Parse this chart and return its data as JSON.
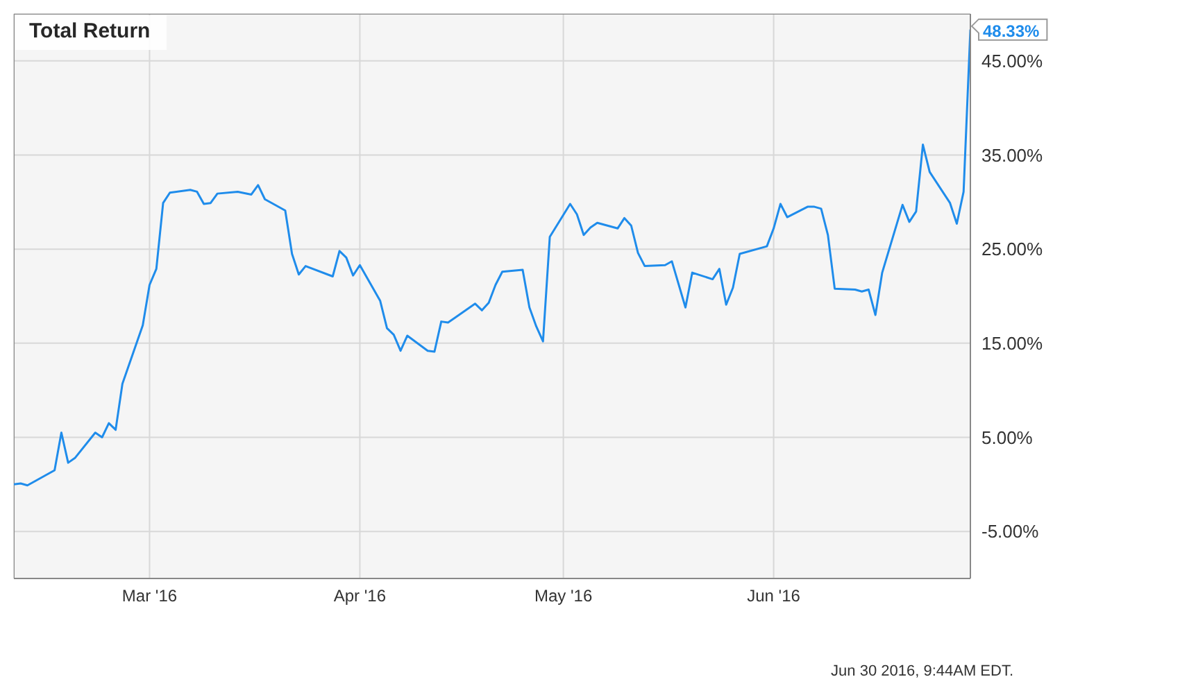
{
  "chart_data": {
    "type": "line",
    "title": "Total Return",
    "annotations": [
      "Jun 30 2016, 9:44AM EDT."
    ],
    "x": [
      "2016-02-10",
      "2016-02-11",
      "2016-02-12",
      "2016-02-16",
      "2016-02-17",
      "2016-02-18",
      "2016-02-19",
      "2016-02-22",
      "2016-02-23",
      "2016-02-24",
      "2016-02-25",
      "2016-02-26",
      "2016-02-29",
      "2016-03-01",
      "2016-03-02",
      "2016-03-03",
      "2016-03-04",
      "2016-03-07",
      "2016-03-08",
      "2016-03-09",
      "2016-03-10",
      "2016-03-11",
      "2016-03-14",
      "2016-03-16",
      "2016-03-17",
      "2016-03-18",
      "2016-03-21",
      "2016-03-22",
      "2016-03-23",
      "2016-03-24",
      "2016-03-28",
      "2016-03-29",
      "2016-03-30",
      "2016-03-31",
      "2016-04-01",
      "2016-04-04",
      "2016-04-05",
      "2016-04-06",
      "2016-04-07",
      "2016-04-08",
      "2016-04-11",
      "2016-04-12",
      "2016-04-13",
      "2016-04-14",
      "2016-04-15",
      "2016-04-18",
      "2016-04-19",
      "2016-04-20",
      "2016-04-21",
      "2016-04-22",
      "2016-04-25",
      "2016-04-26",
      "2016-04-27",
      "2016-04-28",
      "2016-04-29",
      "2016-05-02",
      "2016-05-03",
      "2016-05-04",
      "2016-05-05",
      "2016-05-06",
      "2016-05-09",
      "2016-05-10",
      "2016-05-11",
      "2016-05-12",
      "2016-05-13",
      "2016-05-16",
      "2016-05-17",
      "2016-05-19",
      "2016-05-20",
      "2016-05-23",
      "2016-05-24",
      "2016-05-25",
      "2016-05-26",
      "2016-05-27",
      "2016-05-31",
      "2016-06-01",
      "2016-06-02",
      "2016-06-03",
      "2016-06-06",
      "2016-06-07",
      "2016-06-08",
      "2016-06-09",
      "2016-06-10",
      "2016-06-13",
      "2016-06-14",
      "2016-06-15",
      "2016-06-16",
      "2016-06-17",
      "2016-06-20",
      "2016-06-21",
      "2016-06-22",
      "2016-06-23",
      "2016-06-24",
      "2016-06-27",
      "2016-06-28",
      "2016-06-29",
      "2016-06-30"
    ],
    "series": [
      {
        "color": "#1f8ceb",
        "values": [
          0,
          0.1,
          -0.1,
          1.5,
          5.5,
          2.3,
          2.8,
          5.5,
          5.0,
          6.5,
          5.8,
          10.7,
          16.9,
          21.2,
          22.9,
          29.9,
          31.0,
          31.3,
          31.1,
          29.8,
          29.9,
          30.9,
          31.1,
          30.8,
          31.8,
          30.3,
          29.1,
          24.5,
          22.3,
          23.2,
          22.1,
          24.8,
          24.1,
          22.2,
          23.3,
          19.5,
          16.6,
          15.9,
          14.2,
          15.8,
          14.2,
          14.1,
          17.3,
          17.2,
          17.7,
          19.2,
          18.5,
          19.3,
          21.2,
          22.6,
          22.8,
          18.8,
          16.8,
          15.2,
          26.3,
          29.8,
          28.7,
          26.5,
          27.3,
          27.8,
          27.2,
          28.3,
          27.5,
          24.6,
          23.2,
          23.3,
          23.7,
          18.8,
          22.5,
          21.8,
          22.9,
          19.1,
          20.9,
          24.5,
          25.3,
          27.2,
          29.8,
          28.4,
          29.5,
          29.5,
          29.3,
          26.5,
          20.8,
          20.7,
          20.5,
          20.7,
          18.0,
          22.5,
          29.7,
          27.9,
          29.0,
          36.1,
          33.2,
          29.9,
          27.7,
          31.1,
          48.33
        ],
        "value_labels": [
          null,
          null,
          null,
          null,
          null,
          null,
          null,
          null,
          null,
          null,
          null,
          null,
          null,
          null,
          null,
          null,
          null,
          null,
          null,
          null,
          null,
          null,
          null,
          null,
          null,
          null,
          null,
          null,
          null,
          null,
          null,
          null,
          null,
          null,
          null,
          null,
          null,
          null,
          null,
          null,
          null,
          null,
          null,
          null,
          null,
          null,
          null,
          null,
          null,
          null,
          null,
          null,
          null,
          null,
          null,
          null,
          null,
          null,
          null,
          null,
          null,
          null,
          null,
          null,
          null,
          null,
          null,
          null,
          null,
          null,
          null,
          null,
          null,
          null,
          null,
          null,
          null,
          null,
          null,
          null,
          null,
          null,
          null,
          null,
          null,
          null,
          null,
          null,
          null,
          null,
          null,
          null,
          null,
          null,
          null,
          null,
          "48.33%"
        ]
      }
    ],
    "xlim": [
      "2016-02-10",
      "2016-06-30"
    ],
    "xticks": [
      {
        "value": "2016-03-01",
        "label": "Mar '16"
      },
      {
        "value": "2016-04-01",
        "label": "Apr '16"
      },
      {
        "value": "2016-05-01",
        "label": "May '16"
      },
      {
        "value": "2016-06-01",
        "label": "Jun '16"
      }
    ],
    "ylim": [
      -10,
      50
    ],
    "yticks": [
      {
        "value": -5,
        "label": "-5.00%"
      },
      {
        "value": 5,
        "label": "5.00%"
      },
      {
        "value": 15,
        "label": "15.00%"
      },
      {
        "value": 25,
        "label": "25.00%"
      },
      {
        "value": 35,
        "label": "35.00%"
      },
      {
        "value": 45,
        "label": "45.00%"
      }
    ],
    "grid": true,
    "legend": false,
    "marker": "none",
    "line_style": "solid"
  }
}
